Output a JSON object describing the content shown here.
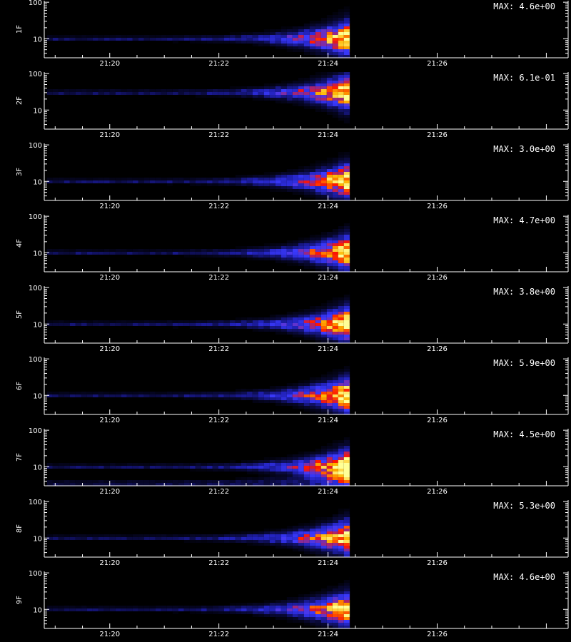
{
  "chart_data": {
    "type": "heatmap",
    "colormap": [
      "#000000",
      "#0a0a3c",
      "#2020b4",
      "#3a3aff",
      "#ff1400",
      "#ffb400",
      "#ffff96"
    ],
    "x_ticks": [
      "21:20",
      "21:22",
      "21:24",
      "21:26"
    ],
    "x_tick_minutes": [
      80,
      82,
      84,
      86
    ],
    "x_range_minutes": [
      78.8,
      88.4
    ],
    "data_end_minute": 84.4,
    "y_scale": "log",
    "y_range": [
      3,
      110
    ],
    "y_ticks": [
      "100",
      "10"
    ],
    "y_tick_values": [
      100,
      10
    ],
    "panels": [
      {
        "label": "1F",
        "max": "MAX: 4.6e+00",
        "peak_freq": 10,
        "band_freqs": [
          10
        ]
      },
      {
        "label": "2F",
        "max": "MAX: 6.1e-01",
        "peak_freq": 30,
        "band_freqs": [
          30
        ]
      },
      {
        "label": "3F",
        "max": "MAX: 3.0e+00",
        "peak_freq": 10,
        "band_freqs": [
          10
        ]
      },
      {
        "label": "4F",
        "max": "MAX: 4.7e+00",
        "peak_freq": 10,
        "band_freqs": [
          10
        ]
      },
      {
        "label": "5F",
        "max": "MAX: 3.8e+00",
        "peak_freq": 10,
        "band_freqs": [
          10
        ]
      },
      {
        "label": "6F",
        "max": "MAX: 5.9e+00",
        "peak_freq": 10,
        "band_freqs": [
          10
        ]
      },
      {
        "label": "7F",
        "max": "MAX: 4.5e+00",
        "peak_freq": 10,
        "band_freqs": [
          10,
          3.5
        ]
      },
      {
        "label": "8F",
        "max": "MAX: 5.3e+00",
        "peak_freq": 10,
        "band_freqs": [
          10
        ]
      },
      {
        "label": "9F",
        "max": "MAX: 4.6e+00",
        "peak_freq": 10,
        "band_freqs": [
          10
        ]
      }
    ]
  }
}
